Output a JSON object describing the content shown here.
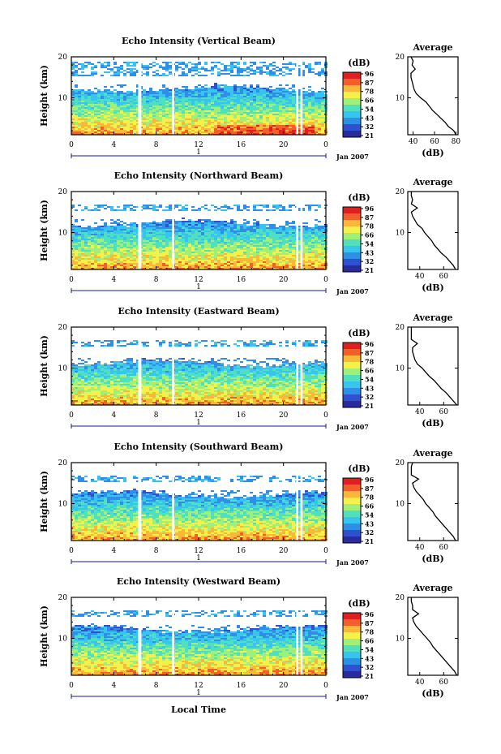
{
  "figure": {
    "xlabel_bottom": "Local Time",
    "date_label": "Jan 2007",
    "day_label": "1",
    "x_ticks": [
      "0",
      "4",
      "8",
      "12",
      "16",
      "20",
      "0"
    ],
    "y_ticks": [
      "10",
      "20"
    ],
    "ylabel": "Height (km)",
    "colorbar_unit": "(dB)",
    "colorbar_ticks": [
      "96",
      "87",
      "78",
      "66",
      "54",
      "43",
      "32",
      "21"
    ],
    "avg_title": "Average",
    "avg_unit": "(dB)"
  },
  "colors": {
    "colormap": [
      "#2a2a9a",
      "#3050d0",
      "#2f8fe6",
      "#38c4f0",
      "#4fe0c0",
      "#9ff07a",
      "#f2f24a",
      "#f8b838",
      "#f06028",
      "#e02020"
    ],
    "line": "#000000",
    "gap": "#ffffff"
  },
  "chart_data": [
    {
      "type": "heatmap",
      "title": "Echo Intensity (Vertical Beam)",
      "xlabel": "",
      "ylabel": "Height (km)",
      "xlim": [
        0,
        24
      ],
      "ylim": [
        1,
        20
      ],
      "colorbar_range_db": [
        21,
        96
      ],
      "data_gaps_hours": [
        [
          6.3,
          6.6
        ],
        [
          9.5,
          9.7
        ],
        [
          21.2,
          21.4
        ],
        [
          21.6,
          21.8
        ]
      ],
      "echo_top_km": 12,
      "upper_layer_km": [
        16,
        19
      ],
      "average_profile": {
        "title": "Average",
        "xlabel": "(dB)",
        "xticks": [
          "40",
          "60",
          "80"
        ],
        "xlim": [
          35,
          82
        ],
        "height_km": [
          20,
          19,
          18,
          17,
          16,
          15,
          14,
          13,
          12,
          11,
          10,
          9,
          8,
          7,
          6,
          5,
          4,
          3,
          2,
          1
        ],
        "db": [
          38,
          40,
          39,
          42,
          38,
          38,
          39,
          40,
          41,
          43,
          47,
          52,
          55,
          58,
          62,
          66,
          70,
          73,
          78,
          80
        ]
      }
    },
    {
      "type": "heatmap",
      "title": "Echo Intensity (Northward Beam)",
      "xlabel": "",
      "ylabel": "Height (km)",
      "xlim": [
        0,
        24
      ],
      "ylim": [
        1,
        20
      ],
      "colorbar_range_db": [
        21,
        96
      ],
      "data_gaps_hours": [
        [
          6.3,
          6.6
        ],
        [
          9.5,
          9.7
        ],
        [
          21.2,
          21.4
        ],
        [
          21.6,
          21.8
        ]
      ],
      "echo_top_km": 12,
      "upper_layer_km": [
        16,
        17
      ],
      "average_profile": {
        "title": "Average",
        "xlabel": "(dB)",
        "xticks": [
          "40",
          "60"
        ],
        "xlim": [
          30,
          72
        ],
        "height_km": [
          20,
          19,
          18,
          17,
          16,
          15,
          14,
          13,
          12,
          11,
          10,
          9,
          8,
          7,
          6,
          5,
          4,
          3,
          2,
          1
        ],
        "db": [
          33,
          33,
          34,
          33,
          38,
          33,
          34,
          36,
          38,
          42,
          44,
          47,
          50,
          52,
          55,
          58,
          62,
          65,
          68,
          70
        ]
      }
    },
    {
      "type": "heatmap",
      "title": "Echo Intensity (Eastward Beam)",
      "xlabel": "",
      "ylabel": "Height (km)",
      "xlim": [
        0,
        24
      ],
      "ylim": [
        1,
        20
      ],
      "colorbar_range_db": [
        21,
        96
      ],
      "data_gaps_hours": [
        [
          6.3,
          6.6
        ],
        [
          9.5,
          9.7
        ],
        [
          21.2,
          21.4
        ],
        [
          21.6,
          21.8
        ]
      ],
      "echo_top_km": 11,
      "upper_layer_km": [
        16,
        17
      ],
      "average_profile": {
        "title": "Average",
        "xlabel": "(dB)",
        "xticks": [
          "40",
          "60"
        ],
        "xlim": [
          30,
          72
        ],
        "height_km": [
          20,
          19,
          18,
          17,
          16,
          15,
          14,
          13,
          12,
          11,
          10,
          9,
          8,
          7,
          6,
          5,
          4,
          3,
          2,
          1
        ],
        "db": [
          33,
          33,
          33,
          33,
          38,
          34,
          34,
          35,
          36,
          38,
          42,
          45,
          48,
          52,
          55,
          58,
          62,
          65,
          68,
          71
        ]
      }
    },
    {
      "type": "heatmap",
      "title": "Echo Intensity (Southward Beam)",
      "xlabel": "",
      "ylabel": "Height (km)",
      "xlim": [
        0,
        24
      ],
      "ylim": [
        1,
        20
      ],
      "colorbar_range_db": [
        21,
        96
      ],
      "data_gaps_hours": [
        [
          6.3,
          6.6
        ],
        [
          9.5,
          9.7
        ],
        [
          21.2,
          21.4
        ],
        [
          21.6,
          21.8
        ]
      ],
      "echo_top_km": 12,
      "upper_layer_km": [
        16,
        17
      ],
      "average_profile": {
        "title": "Average",
        "xlabel": "(dB)",
        "xticks": [
          "40",
          "60"
        ],
        "xlim": [
          30,
          72
        ],
        "height_km": [
          20,
          19,
          18,
          17,
          16,
          15,
          14,
          13,
          12,
          11,
          10,
          9,
          8,
          7,
          6,
          5,
          4,
          3,
          2,
          1
        ],
        "db": [
          34,
          33,
          33,
          33,
          39,
          34,
          35,
          37,
          40,
          43,
          45,
          48,
          51,
          53,
          56,
          59,
          62,
          65,
          68,
          70
        ]
      }
    },
    {
      "type": "heatmap",
      "title": "Echo Intensity (Westward Beam)",
      "xlabel": "Local Time",
      "ylabel": "Height (km)",
      "xlim": [
        0,
        24
      ],
      "ylim": [
        1,
        20
      ],
      "colorbar_range_db": [
        21,
        96
      ],
      "data_gaps_hours": [
        [
          6.3,
          6.6
        ],
        [
          9.5,
          9.7
        ],
        [
          21.2,
          21.4
        ],
        [
          21.6,
          21.8
        ]
      ],
      "echo_top_km": 12,
      "upper_layer_km": [
        16,
        17
      ],
      "average_profile": {
        "title": "Average",
        "xlabel": "(dB)",
        "xticks": [
          "40",
          "60"
        ],
        "xlim": [
          30,
          72
        ],
        "height_km": [
          20,
          19,
          18,
          17,
          16,
          15,
          14,
          13,
          12,
          11,
          10,
          9,
          8,
          7,
          6,
          5,
          4,
          3,
          2,
          1
        ],
        "db": [
          33,
          33,
          34,
          34,
          39,
          34,
          35,
          37,
          40,
          43,
          46,
          49,
          51,
          54,
          57,
          60,
          63,
          66,
          69,
          71
        ]
      }
    }
  ]
}
